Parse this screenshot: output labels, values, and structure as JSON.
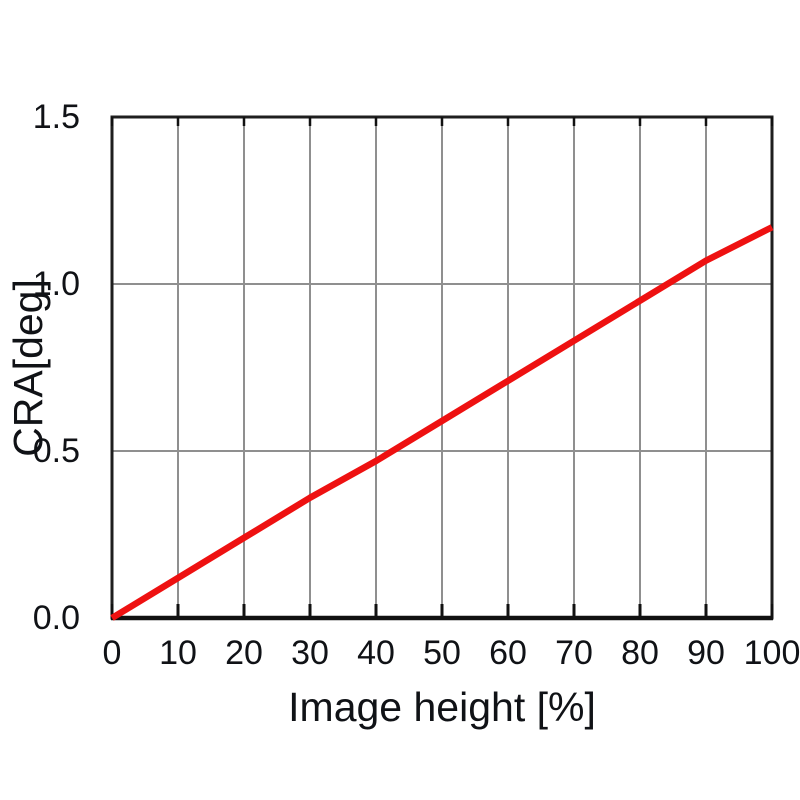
{
  "figure": {
    "background": "#ffffff"
  },
  "chart_data": {
    "type": "line",
    "title": "",
    "xlabel": "Image height [%]",
    "ylabel": "CRA[deg]",
    "x": [
      0,
      10,
      20,
      30,
      40,
      50,
      60,
      70,
      80,
      90,
      100
    ],
    "series": [
      {
        "name": "CRA",
        "color": "#ee1111",
        "values": [
          0.0,
          0.12,
          0.24,
          0.36,
          0.47,
          0.59,
          0.71,
          0.83,
          0.95,
          1.07,
          1.17
        ]
      }
    ],
    "xlim": [
      0,
      100
    ],
    "ylim": [
      0,
      1.5
    ],
    "xtick_values": [
      0,
      10,
      20,
      30,
      40,
      50,
      60,
      70,
      80,
      90,
      100
    ],
    "xtick_labels": [
      "0",
      "10",
      "20",
      "30",
      "40",
      "50",
      "60",
      "70",
      "80",
      "90",
      "100"
    ],
    "ytick_values": [
      0,
      0.5,
      1.0,
      1.5
    ],
    "ytick_labels": [
      "0.0",
      "0.5",
      "1.0",
      "1.5"
    ],
    "grid": true,
    "legend_position": "none",
    "colors": {
      "line": "#ee1111",
      "grid": "#8f8f8f",
      "frame": "#1f1f1f",
      "bottom_axis": "#111111",
      "tick": "#111111",
      "text": "#101216",
      "background": "#ffffff"
    }
  }
}
